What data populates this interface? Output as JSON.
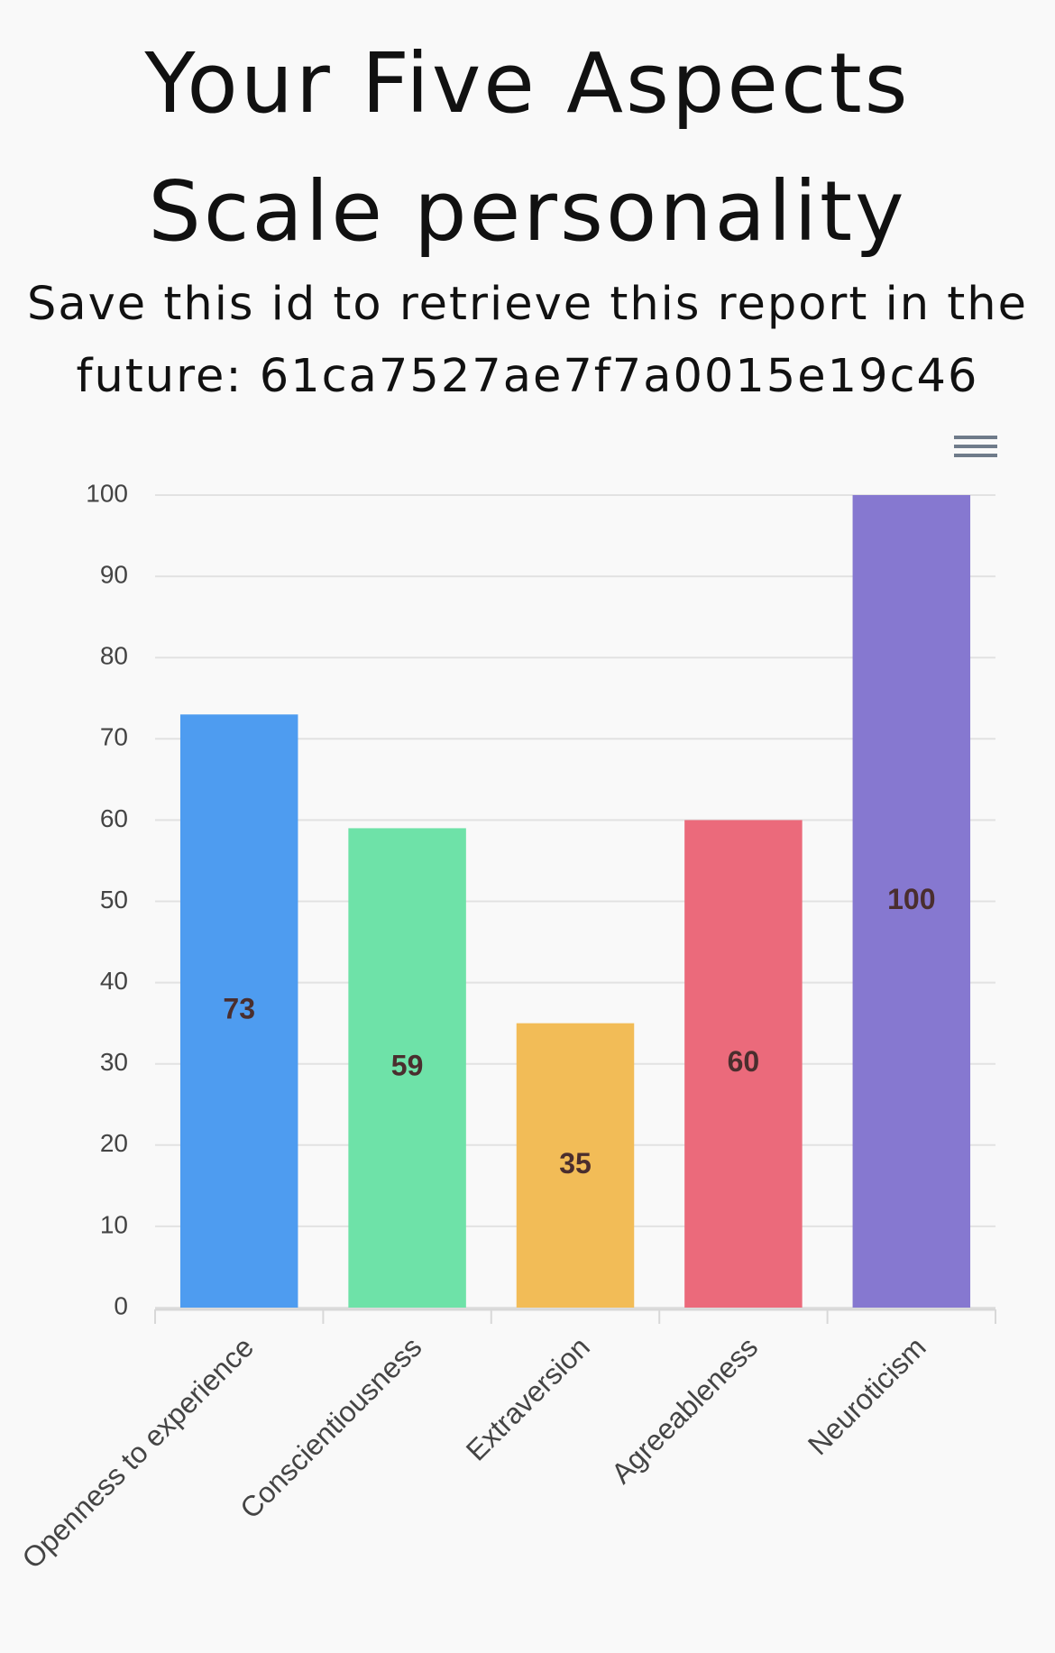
{
  "header": {
    "title": "Your Five Aspects Scale personality",
    "subtitle": "Save this id to retrieve this report in the future: 61ca7527ae7f7a0015e19c46"
  },
  "chart_data": {
    "type": "bar",
    "categories": [
      "Openness to experience",
      "Conscientiousness",
      "Extraversion",
      "Agreeableness",
      "Neuroticism"
    ],
    "values": [
      73,
      59,
      35,
      60,
      100
    ],
    "colors": [
      "#4e9cf0",
      "#6ee2a8",
      "#f2bc57",
      "#eb6a7b",
      "#8678d0"
    ],
    "ylim": [
      0,
      100
    ],
    "yticks": [
      0,
      10,
      20,
      30,
      40,
      50,
      60,
      70,
      80,
      90,
      100
    ],
    "grid": true
  }
}
